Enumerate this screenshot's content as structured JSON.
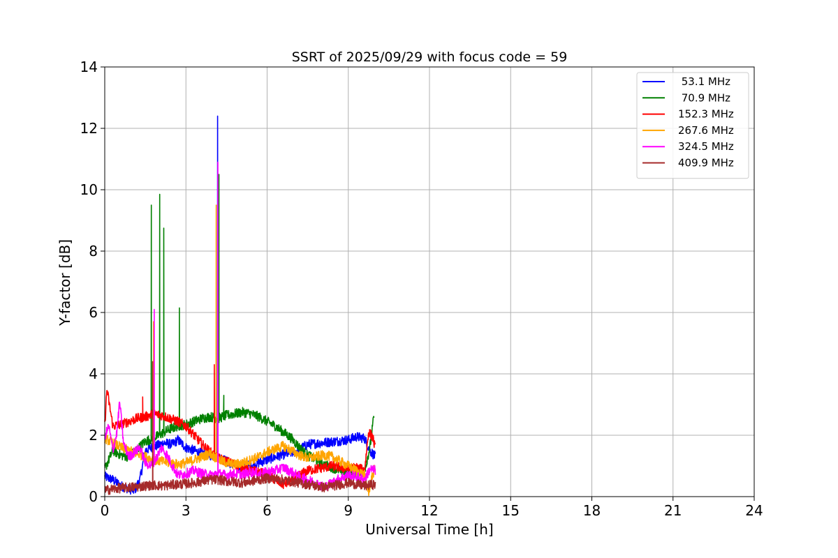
{
  "chart_data": {
    "type": "line",
    "title": "SSRT of 2025/09/29 with focus code = 59",
    "xlabel": "Universal Time [h]",
    "ylabel": "Y-factor [dB]",
    "xlim": [
      0,
      24
    ],
    "ylim": [
      0,
      14
    ],
    "xticks": [
      0,
      3,
      6,
      9,
      12,
      15,
      18,
      21,
      24
    ],
    "yticks": [
      0,
      2,
      4,
      6,
      8,
      10,
      12,
      14
    ],
    "grid": true,
    "legend_position": "top-right",
    "series": [
      {
        "name": " 53.1 MHz",
        "color": "#0000ff",
        "points": [
          [
            0.0,
            0.65
          ],
          [
            0.3,
            0.55
          ],
          [
            0.6,
            0.35
          ],
          [
            0.9,
            0.25
          ],
          [
            1.1,
            0.2
          ],
          [
            1.3,
            0.55
          ],
          [
            1.5,
            1.5
          ],
          [
            1.7,
            1.6
          ],
          [
            1.9,
            1.65
          ],
          [
            2.2,
            1.75
          ],
          [
            2.5,
            1.7
          ],
          [
            2.7,
            1.85
          ],
          [
            3.0,
            1.6
          ],
          [
            3.3,
            1.5
          ],
          [
            3.6,
            1.4
          ],
          [
            3.9,
            1.35
          ],
          [
            4.2,
            1.3
          ],
          [
            4.6,
            1.1
          ],
          [
            5.0,
            0.95
          ],
          [
            5.5,
            1.05
          ],
          [
            6.0,
            1.2
          ],
          [
            6.5,
            1.35
          ],
          [
            7.0,
            1.45
          ],
          [
            7.5,
            1.7
          ],
          [
            8.0,
            1.75
          ],
          [
            8.5,
            1.8
          ],
          [
            9.0,
            1.85
          ],
          [
            9.3,
            1.95
          ],
          [
            9.6,
            1.9
          ],
          [
            9.8,
            1.5
          ],
          [
            10.0,
            1.3
          ]
        ],
        "spikes": [
          [
            4.17,
            12.4
          ]
        ]
      },
      {
        "name": " 70.9 MHz",
        "color": "#008000",
        "points": [
          [
            0.0,
            0.9
          ],
          [
            0.3,
            1.5
          ],
          [
            0.6,
            1.35
          ],
          [
            0.9,
            1.3
          ],
          [
            1.2,
            1.55
          ],
          [
            1.5,
            1.8
          ],
          [
            1.8,
            1.9
          ],
          [
            2.1,
            2.05
          ],
          [
            2.4,
            2.2
          ],
          [
            2.7,
            2.3
          ],
          [
            3.0,
            2.35
          ],
          [
            3.3,
            2.45
          ],
          [
            3.6,
            2.55
          ],
          [
            3.9,
            2.6
          ],
          [
            4.2,
            2.55
          ],
          [
            4.5,
            2.65
          ],
          [
            4.8,
            2.7
          ],
          [
            5.1,
            2.75
          ],
          [
            5.4,
            2.7
          ],
          [
            5.7,
            2.6
          ],
          [
            6.0,
            2.45
          ],
          [
            6.3,
            2.3
          ],
          [
            6.6,
            2.1
          ],
          [
            6.9,
            1.9
          ],
          [
            7.2,
            1.6
          ],
          [
            7.5,
            1.35
          ],
          [
            7.8,
            1.2
          ],
          [
            8.1,
            1.05
          ],
          [
            8.4,
            0.95
          ],
          [
            8.7,
            0.85
          ],
          [
            9.0,
            0.8
          ],
          [
            9.3,
            0.75
          ],
          [
            9.6,
            0.85
          ],
          [
            9.8,
            1.6
          ],
          [
            9.95,
            2.65
          ]
        ],
        "spikes": [
          [
            1.72,
            9.5
          ],
          [
            2.03,
            9.85
          ],
          [
            2.18,
            8.75
          ],
          [
            2.76,
            6.15
          ],
          [
            4.22,
            10.5
          ],
          [
            4.4,
            3.3
          ]
        ]
      },
      {
        "name": "152.3 MHz",
        "color": "#ff0000",
        "points": [
          [
            0.0,
            2.3
          ],
          [
            0.08,
            3.5
          ],
          [
            0.3,
            2.3
          ],
          [
            0.6,
            2.35
          ],
          [
            0.9,
            2.45
          ],
          [
            1.2,
            2.55
          ],
          [
            1.5,
            2.6
          ],
          [
            1.8,
            2.7
          ],
          [
            2.1,
            2.65
          ],
          [
            2.4,
            2.55
          ],
          [
            2.7,
            2.45
          ],
          [
            3.0,
            2.3
          ],
          [
            3.3,
            2.0
          ],
          [
            3.6,
            1.7
          ],
          [
            3.9,
            1.45
          ],
          [
            4.2,
            1.25
          ],
          [
            4.5,
            1.15
          ],
          [
            4.8,
            1.05
          ],
          [
            5.1,
            0.95
          ],
          [
            5.4,
            0.85
          ],
          [
            5.7,
            0.8
          ],
          [
            6.0,
            0.7
          ],
          [
            6.3,
            0.55
          ],
          [
            6.6,
            0.4
          ],
          [
            6.9,
            0.5
          ],
          [
            7.2,
            0.7
          ],
          [
            7.5,
            0.85
          ],
          [
            7.8,
            0.9
          ],
          [
            8.1,
            0.95
          ],
          [
            8.4,
            1.0
          ],
          [
            8.7,
            0.95
          ],
          [
            9.0,
            0.9
          ],
          [
            9.3,
            0.95
          ],
          [
            9.6,
            0.85
          ],
          [
            9.75,
            2.1
          ],
          [
            9.9,
            1.95
          ],
          [
            10.0,
            1.55
          ]
        ],
        "spikes": [
          [
            1.4,
            3.25
          ],
          [
            4.05,
            4.3
          ]
        ]
      },
      {
        "name": "267.6 MHz",
        "color": "#ffa500",
        "points": [
          [
            0.0,
            1.9
          ],
          [
            0.3,
            1.75
          ],
          [
            0.6,
            1.6
          ],
          [
            0.9,
            1.5
          ],
          [
            1.2,
            1.4
          ],
          [
            1.5,
            1.3
          ],
          [
            1.8,
            1.2
          ],
          [
            2.1,
            1.15
          ],
          [
            2.4,
            1.1
          ],
          [
            2.7,
            1.05
          ],
          [
            3.0,
            1.1
          ],
          [
            3.3,
            1.2
          ],
          [
            3.6,
            1.3
          ],
          [
            3.9,
            1.4
          ],
          [
            4.2,
            1.2
          ],
          [
            4.5,
            1.1
          ],
          [
            4.8,
            1.05
          ],
          [
            5.1,
            1.1
          ],
          [
            5.4,
            1.2
          ],
          [
            5.7,
            1.3
          ],
          [
            6.0,
            1.45
          ],
          [
            6.3,
            1.55
          ],
          [
            6.6,
            1.65
          ],
          [
            6.9,
            1.5
          ],
          [
            7.2,
            1.35
          ],
          [
            7.5,
            1.25
          ],
          [
            7.8,
            1.3
          ],
          [
            8.1,
            1.35
          ],
          [
            8.4,
            1.3
          ],
          [
            8.7,
            1.15
          ],
          [
            9.0,
            1.0
          ],
          [
            9.3,
            0.85
          ],
          [
            9.6,
            0.7
          ],
          [
            9.75,
            0.15
          ],
          [
            9.9,
            0.7
          ],
          [
            10.0,
            0.95
          ]
        ],
        "spikes": [
          [
            1.8,
            5.7
          ],
          [
            4.12,
            9.5
          ]
        ]
      },
      {
        "name": "324.5 MHz",
        "color": "#ff00ff",
        "points": [
          [
            0.0,
            1.95
          ],
          [
            0.15,
            2.3
          ],
          [
            0.3,
            1.5
          ],
          [
            0.45,
            2.1
          ],
          [
            0.55,
            3.1
          ],
          [
            0.7,
            1.7
          ],
          [
            0.9,
            1.3
          ],
          [
            1.1,
            1.45
          ],
          [
            1.3,
            1.6
          ],
          [
            1.5,
            1.1
          ],
          [
            1.7,
            1.0
          ],
          [
            1.9,
            1.25
          ],
          [
            2.1,
            1.6
          ],
          [
            2.3,
            1.35
          ],
          [
            2.5,
            1.0
          ],
          [
            2.7,
            0.7
          ],
          [
            3.0,
            0.75
          ],
          [
            3.3,
            0.85
          ],
          [
            3.6,
            0.75
          ],
          [
            3.9,
            0.7
          ],
          [
            4.2,
            0.75
          ],
          [
            4.5,
            0.7
          ],
          [
            4.8,
            0.75
          ],
          [
            5.1,
            0.72
          ],
          [
            5.4,
            0.8
          ],
          [
            5.7,
            0.75
          ],
          [
            6.0,
            0.8
          ],
          [
            6.3,
            0.85
          ],
          [
            6.6,
            0.95
          ],
          [
            6.9,
            0.8
          ],
          [
            7.2,
            0.65
          ],
          [
            7.5,
            0.55
          ],
          [
            7.8,
            0.45
          ],
          [
            8.1,
            0.3
          ],
          [
            8.4,
            0.45
          ],
          [
            8.7,
            0.6
          ],
          [
            9.0,
            0.7
          ],
          [
            9.3,
            0.65
          ],
          [
            9.6,
            0.55
          ],
          [
            9.8,
            0.9
          ],
          [
            10.0,
            0.85
          ]
        ],
        "spikes": [
          [
            1.83,
            6.1
          ],
          [
            4.18,
            10.9
          ]
        ]
      },
      {
        "name": "409.9 MHz",
        "color": "#a52a2a",
        "points": [
          [
            0.0,
            0.2
          ],
          [
            0.3,
            0.25
          ],
          [
            0.6,
            0.28
          ],
          [
            0.9,
            0.3
          ],
          [
            1.2,
            0.32
          ],
          [
            1.5,
            0.35
          ],
          [
            1.8,
            0.38
          ],
          [
            2.1,
            0.35
          ],
          [
            2.4,
            0.38
          ],
          [
            2.7,
            0.4
          ],
          [
            3.0,
            0.42
          ],
          [
            3.3,
            0.45
          ],
          [
            3.6,
            0.5
          ],
          [
            3.9,
            0.55
          ],
          [
            4.2,
            0.55
          ],
          [
            4.5,
            0.5
          ],
          [
            4.8,
            0.48
          ],
          [
            5.1,
            0.45
          ],
          [
            5.4,
            0.5
          ],
          [
            5.7,
            0.55
          ],
          [
            6.0,
            0.6
          ],
          [
            6.3,
            0.58
          ],
          [
            6.6,
            0.55
          ],
          [
            6.9,
            0.5
          ],
          [
            7.2,
            0.45
          ],
          [
            7.5,
            0.4
          ],
          [
            7.8,
            0.35
          ],
          [
            8.1,
            0.3
          ],
          [
            8.4,
            0.35
          ],
          [
            8.7,
            0.4
          ],
          [
            9.0,
            0.45
          ],
          [
            9.3,
            0.4
          ],
          [
            9.6,
            0.35
          ],
          [
            9.8,
            0.38
          ],
          [
            10.0,
            0.4
          ]
        ],
        "spikes": [
          [
            1.77,
            4.4
          ]
        ]
      }
    ]
  }
}
